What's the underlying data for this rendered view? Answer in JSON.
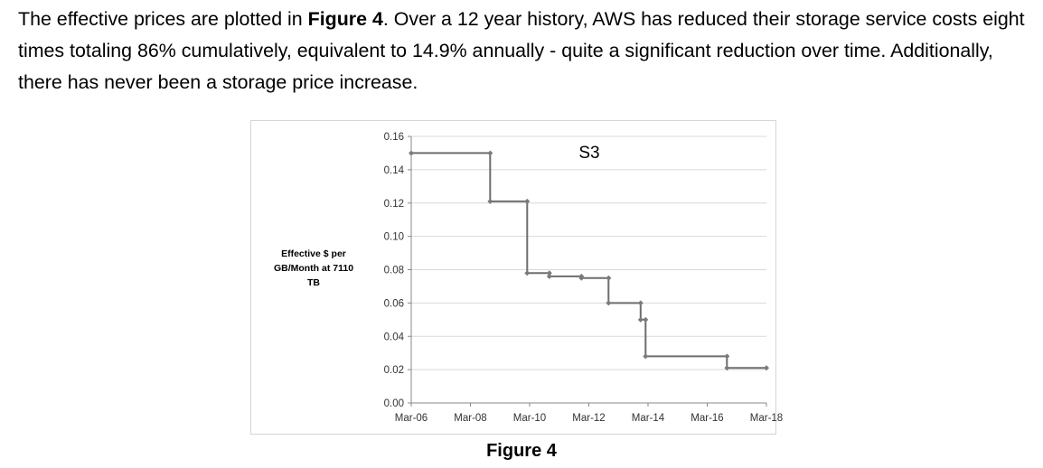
{
  "paragraph": {
    "part1": "The effective prices are plotted in ",
    "figure_ref": "Figure 4",
    "part2": ". Over a 12 year history, AWS has reduced their storage service costs eight times totaling 86% cumulatively, equivalent to 14.9% annually - quite a significant reduction over time. Additionally, there has never been a storage price increase."
  },
  "caption": "Figure 4",
  "colors": {
    "line": "#6d6d6d",
    "marker": "#7a7a7a",
    "grid": "#d9d9d9"
  },
  "chart_data": {
    "type": "line",
    "step": true,
    "title": "S3",
    "ylabel_lines": [
      "Effective $ per",
      "GB/Month at 7110",
      "TB"
    ],
    "xlabel": "",
    "ylim": [
      0,
      0.16
    ],
    "yticks": [
      "0.00",
      "0.02",
      "0.04",
      "0.06",
      "0.08",
      "0.10",
      "0.12",
      "0.14",
      "0.16"
    ],
    "xlim": [
      "2006-03",
      "2018-03"
    ],
    "xticks": [
      "Mar-06",
      "Mar-08",
      "Mar-10",
      "Mar-12",
      "Mar-14",
      "Mar-16",
      "Mar-18"
    ],
    "grid": true,
    "legend": "none",
    "series": [
      {
        "points": [
          {
            "x": "2006-03",
            "y": 0.15
          },
          {
            "x": "2008-11",
            "y": 0.15
          },
          {
            "x": "2008-11",
            "y": 0.121
          },
          {
            "x": "2010-02",
            "y": 0.121
          },
          {
            "x": "2010-02",
            "y": 0.078
          },
          {
            "x": "2010-11",
            "y": 0.078
          },
          {
            "x": "2010-11",
            "y": 0.076
          },
          {
            "x": "2011-12",
            "y": 0.076
          },
          {
            "x": "2011-12",
            "y": 0.075
          },
          {
            "x": "2012-11",
            "y": 0.075
          },
          {
            "x": "2012-11",
            "y": 0.06
          },
          {
            "x": "2013-12",
            "y": 0.06
          },
          {
            "x": "2013-12",
            "y": 0.05
          },
          {
            "x": "2014-02",
            "y": 0.05
          },
          {
            "x": "2014-02",
            "y": 0.028
          },
          {
            "x": "2016-11",
            "y": 0.028
          },
          {
            "x": "2016-11",
            "y": 0.021
          },
          {
            "x": "2018-03",
            "y": 0.021
          }
        ]
      }
    ]
  }
}
